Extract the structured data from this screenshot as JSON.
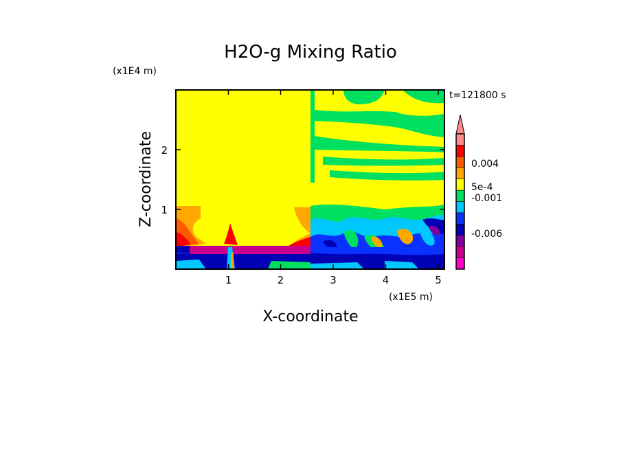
{
  "chart_data": {
    "type": "heatmap",
    "title": "H2O-g Mixing Ratio",
    "time_label": "t=121800 s",
    "xlabel": "X-coordinate",
    "ylabel": "Z-coordinate",
    "x_unit": "(x1E5 m)",
    "y_unit": "(x1E4 m)",
    "xlim": [
      0,
      5.15
    ],
    "ylim": [
      0,
      3.0
    ],
    "x_ticks": [
      "1",
      "2",
      "3",
      "4",
      "5"
    ],
    "y_ticks": [
      "1",
      "2"
    ],
    "colorbar": {
      "levels": 11,
      "extend": "max",
      "tick_labels": [
        "0.004",
        "5e-4",
        "-0.001",
        "-0.006"
      ],
      "colors": [
        "#ff00c8",
        "#c8008c",
        "#8000a0",
        "#0000b4",
        "#0a32ff",
        "#00c8ff",
        "#00e060",
        "#ffff00",
        "#ffa800",
        "#ff5a00",
        "#ff0000",
        "#ff8c8c"
      ]
    },
    "regions": [
      {
        "name": "upper-domain-background",
        "x": [
          0,
          5.15
        ],
        "z": [
          0,
          3.0
        ],
        "value_class": "yellow"
      },
      {
        "name": "left-low-level-moist-layer",
        "x": [
          0,
          0.4
        ],
        "z": [
          0.3,
          1.0
        ],
        "value_class": "orange-red"
      },
      {
        "name": "dry-surface-layer",
        "x": [
          0,
          5.15
        ],
        "z": [
          0,
          0.4
        ],
        "value_class": "blue"
      },
      {
        "name": "very-dry-slab",
        "x": [
          0.3,
          2.6
        ],
        "z": [
          0.25,
          0.4
        ],
        "value_class": "magenta-purple"
      },
      {
        "name": "turbulent-right-boundary-layer",
        "x": [
          2.6,
          5.15
        ],
        "z": [
          0,
          1.1
        ],
        "value_class": "green-cyan-blue-orange"
      },
      {
        "name": "right-upper-green-streaks",
        "x": [
          2.6,
          5.15
        ],
        "z": [
          1.4,
          3.0
        ],
        "value_class": "green"
      }
    ]
  }
}
